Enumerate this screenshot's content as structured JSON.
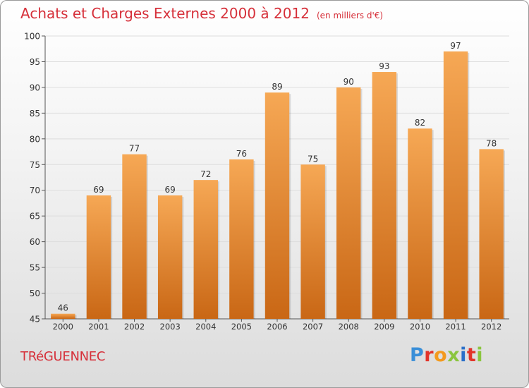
{
  "header": {
    "title": "Achats et Charges Externes 2000 à 2012",
    "subtitle": "(en milliers d'€)"
  },
  "footer": {
    "commune": "TRéGUENNEC",
    "logo": {
      "text": "Proxiti",
      "letter_colors": [
        "#3a8fd8",
        "#e2342a",
        "#f39a1e",
        "#8bc53f",
        "#2a6fc9",
        "#e2342a",
        "#8bc53f"
      ]
    }
  },
  "colors": {
    "bar_light": "#f6a855",
    "bar_dark": "#c96715",
    "grid": "#dddddd",
    "axis": "#555555",
    "text": "#333333",
    "title": "#d6303a"
  },
  "chart_data": {
    "type": "bar",
    "title": "Achats et Charges Externes 2000 à 2012",
    "subtitle": "(en milliers d'€)",
    "categories": [
      "2000",
      "2001",
      "2002",
      "2003",
      "2004",
      "2005",
      "2006",
      "2007",
      "2008",
      "2009",
      "2010",
      "2011",
      "2012"
    ],
    "values": [
      46,
      69,
      77,
      69,
      72,
      76,
      89,
      75,
      90,
      93,
      82,
      97,
      78
    ],
    "ylim": [
      45,
      100
    ],
    "yticks": [
      45,
      50,
      55,
      60,
      65,
      70,
      75,
      80,
      85,
      90,
      95,
      100
    ],
    "grid": true,
    "data_labels": true,
    "xlabel": "",
    "ylabel": ""
  }
}
